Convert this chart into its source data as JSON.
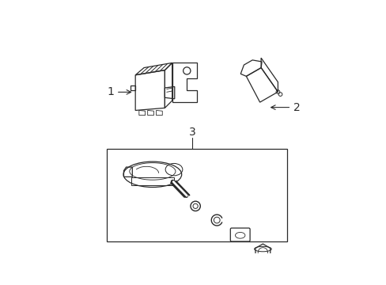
{
  "background_color": "#ffffff",
  "line_color": "#2a2a2a",
  "label1": "1",
  "label2": "2",
  "label3": "3",
  "figsize": [
    4.89,
    3.6
  ],
  "dpi": 100
}
